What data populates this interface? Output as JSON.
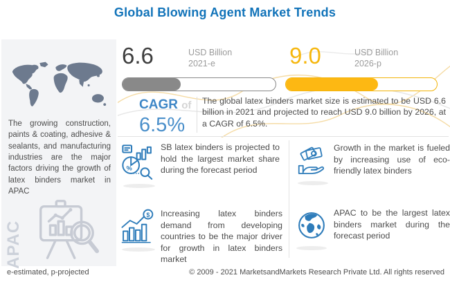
{
  "title": "Global Blowing Agent Market Trends",
  "sidebar": {
    "description": "The growing construction, paints & coating, adhesive & sealants, and manufacturing industries are the major factors driving the growth of latex binders market in APAC",
    "region_watermark": "APAC"
  },
  "stats": {
    "current": {
      "value": "6.6",
      "unit": "USD Billion",
      "year": "2021-e",
      "fill_percent": 38,
      "bar_color": "#898989"
    },
    "projected": {
      "value": "9.0",
      "unit": "USD Billion",
      "year": "2026-p",
      "fill_percent": 61,
      "bar_color": "#fdb813"
    }
  },
  "cagr": {
    "label": "CAGR",
    "connector": "of",
    "value": "6.5%"
  },
  "summary": "The global latex binders market size is estimated to be USD 6.6 billion in 2021 and projected to reach USD 9.0 billion by 2026, at a CAGR of 6.5%.",
  "highlights": [
    {
      "icon": "market-share-analysis-icon",
      "text": "SB latex binders is projected to hold the largest market share during the forecast period"
    },
    {
      "icon": "money-in-hand-icon",
      "text": "Growth in the market is fueled by increasing use of eco-friendly latex binders"
    },
    {
      "icon": "growth-bars-coin-icon",
      "text": "Increasing latex binders demand from developing countries to be the major driver for growth in latex binders market"
    },
    {
      "icon": "globe-icon",
      "text": "APAC to be the largest latex binders market during the forecast period"
    }
  ],
  "footer": {
    "left_note": "e-estimated, p-projected",
    "copyright": "© 2009 - 2021 MarketsandMarkets Research Private Ltd. All rights reserved"
  },
  "colors": {
    "title_blue": "#1173b9",
    "accent_blue": "#2e7cba",
    "cagr_blue": "#3d86c6",
    "yellow": "#f6b70e",
    "gray_bar": "#898989",
    "text_gray": "#4b4b4b",
    "sidebar_bg": "#f3f4f6",
    "map_gray": "#6d7a8e"
  },
  "chart_data": {
    "type": "bar",
    "title": "Global Blowing Agent Market Trends",
    "subject": "Global latex binders market size",
    "categories": [
      "2021-e",
      "2026-p"
    ],
    "values": [
      6.6,
      9.0
    ],
    "unit": "USD Billion",
    "cagr_percent": 6.5,
    "bar_fill_percents": [
      38,
      61
    ]
  }
}
